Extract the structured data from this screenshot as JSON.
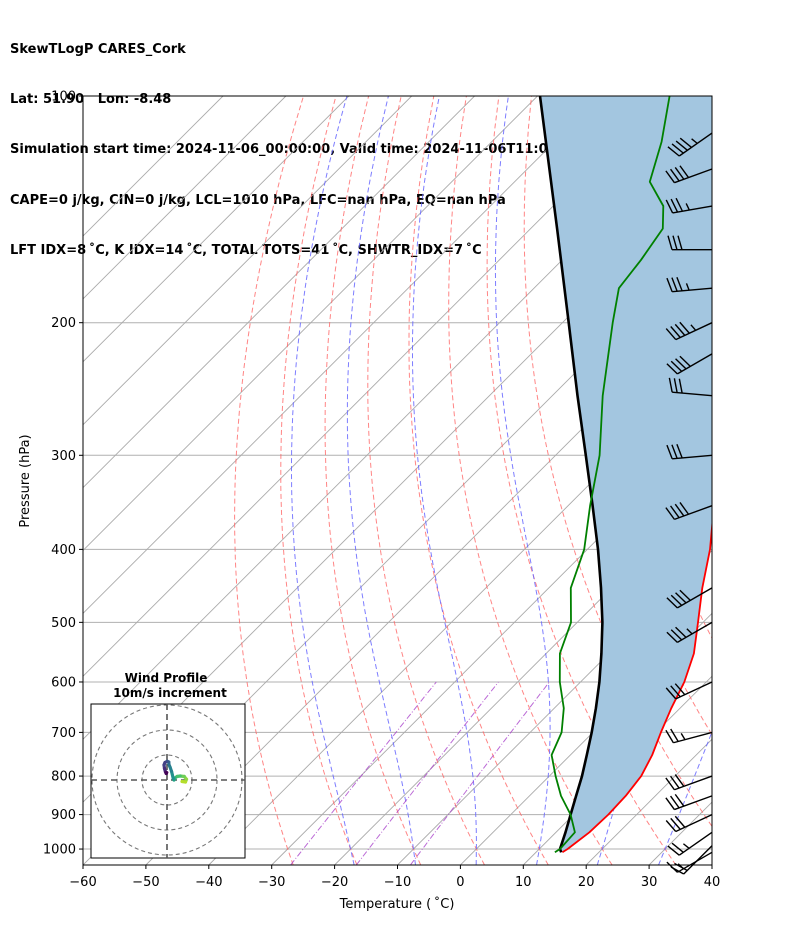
{
  "header": {
    "lines": [
      "SkewTLogP CARES_Cork",
      "Lat: 51.90   Lon: -8.48",
      "Simulation start time: 2024-11-06_00:00:00, Valid time: 2024-11-06T11:00:00.00",
      "CAPE=0 j/kg, CIN=0 j/kg, LCL=1010 hPa, LFC=nan hPa, EQ=nan hPa",
      "LFT IDX=8 ˚C, K IDX=14 ˚C, TOTAL TOTS=41 ˚C, SHWTR_IDX=7 ˚C"
    ]
  },
  "chart_data": {
    "type": "skewt",
    "xlabel": "Temperature ( ˚C)",
    "ylabel": "Pressure (hPa)",
    "xlim": [
      -60,
      40
    ],
    "ylim": [
      1050,
      100
    ],
    "xticks": [
      -60,
      -50,
      -40,
      -30,
      -20,
      -10,
      0,
      10,
      20,
      30,
      40
    ],
    "yticks": [
      100,
      200,
      300,
      400,
      500,
      600,
      700,
      800,
      900,
      1000
    ],
    "colors": {
      "temperature": "#ff0000",
      "dewpoint": "#008000",
      "parcel": "#000000",
      "shade": "#a3c6e0",
      "dry_adiabat": "#ff6666",
      "moist_adiabat": "#6666ff",
      "mixing_ratio": "#aa44cc",
      "isotherm": "#aaaaaa"
    },
    "temperature": [
      {
        "p": 1010,
        "t": 14.2
      },
      {
        "p": 1000,
        "t": 14.5
      },
      {
        "p": 950,
        "t": 15.3
      },
      {
        "p": 900,
        "t": 15.5
      },
      {
        "p": 850,
        "t": 15.3
      },
      {
        "p": 800,
        "t": 14.6
      },
      {
        "p": 750,
        "t": 13.0
      },
      {
        "p": 700,
        "t": 10.8
      },
      {
        "p": 650,
        "t": 8.6
      },
      {
        "p": 600,
        "t": 6.5
      },
      {
        "p": 550,
        "t": 3.5
      },
      {
        "p": 500,
        "t": -0.8
      },
      {
        "p": 450,
        "t": -5.6
      },
      {
        "p": 400,
        "t": -10.5
      },
      {
        "p": 350,
        "t": -16.8
      },
      {
        "p": 300,
        "t": -23.8
      },
      {
        "p": 250,
        "t": -31.8
      },
      {
        "p": 200,
        "t": -41.0
      },
      {
        "p": 175,
        "t": -46.0
      },
      {
        "p": 160,
        "t": -46.0
      },
      {
        "p": 150,
        "t": -44.3
      },
      {
        "p": 130,
        "t": -43.0
      },
      {
        "p": 115,
        "t": -44.8
      },
      {
        "p": 100,
        "t": -47.5
      }
    ],
    "dewpoint": [
      {
        "p": 1010,
        "t": 13.0
      },
      {
        "p": 1000,
        "t": 13.3
      },
      {
        "p": 950,
        "t": 13.0
      },
      {
        "p": 900,
        "t": 9.5
      },
      {
        "p": 850,
        "t": 5.0
      },
      {
        "p": 800,
        "t": 1.0
      },
      {
        "p": 750,
        "t": -3.0
      },
      {
        "p": 700,
        "t": -5.0
      },
      {
        "p": 650,
        "t": -8.5
      },
      {
        "p": 600,
        "t": -13.3
      },
      {
        "p": 550,
        "t": -17.8
      },
      {
        "p": 500,
        "t": -21.0
      },
      {
        "p": 450,
        "t": -26.5
      },
      {
        "p": 400,
        "t": -30.5
      },
      {
        "p": 350,
        "t": -36.5
      },
      {
        "p": 300,
        "t": -43.0
      },
      {
        "p": 250,
        "t": -52.0
      },
      {
        "p": 200,
        "t": -62.0
      },
      {
        "p": 180,
        "t": -66.5
      },
      {
        "p": 165,
        "t": -67.5
      },
      {
        "p": 150,
        "t": -69.0
      },
      {
        "p": 140,
        "t": -72.5
      },
      {
        "p": 130,
        "t": -78.5
      },
      {
        "p": 115,
        "t": -83.0
      },
      {
        "p": 100,
        "t": -89.0
      }
    ],
    "parcel": [
      {
        "p": 1010,
        "t": 14.0
      },
      {
        "p": 1000,
        "t": 13.3
      },
      {
        "p": 950,
        "t": 11.5
      },
      {
        "p": 900,
        "t": 9.5
      },
      {
        "p": 850,
        "t": 7.4
      },
      {
        "p": 800,
        "t": 5.2
      },
      {
        "p": 750,
        "t": 2.6
      },
      {
        "p": 700,
        "t": -0.2
      },
      {
        "p": 650,
        "t": -3.4
      },
      {
        "p": 600,
        "t": -7.0
      },
      {
        "p": 550,
        "t": -11.2
      },
      {
        "p": 500,
        "t": -16.0
      },
      {
        "p": 450,
        "t": -21.7
      },
      {
        "p": 400,
        "t": -28.3
      },
      {
        "p": 350,
        "t": -36.1
      },
      {
        "p": 300,
        "t": -45.2
      },
      {
        "p": 250,
        "t": -56.0
      },
      {
        "p": 200,
        "t": -69.0
      },
      {
        "p": 150,
        "t": -85.8
      },
      {
        "p": 100,
        "t": -109.6
      }
    ],
    "wind_barbs": [
      {
        "p": 1010,
        "dir": 240,
        "speed_kt": 15
      },
      {
        "p": 990,
        "dir": 225,
        "speed_kt": 20
      },
      {
        "p": 950,
        "dir": 235,
        "speed_kt": 25
      },
      {
        "p": 900,
        "dir": 245,
        "speed_kt": 30
      },
      {
        "p": 850,
        "dir": 250,
        "speed_kt": 30
      },
      {
        "p": 800,
        "dir": 250,
        "speed_kt": 30
      },
      {
        "p": 700,
        "dir": 255,
        "speed_kt": 25
      },
      {
        "p": 600,
        "dir": 245,
        "speed_kt": 30
      },
      {
        "p": 500,
        "dir": 240,
        "speed_kt": 35
      },
      {
        "p": 450,
        "dir": 240,
        "speed_kt": 40
      },
      {
        "p": 350,
        "dir": 250,
        "speed_kt": 40
      },
      {
        "p": 300,
        "dir": 265,
        "speed_kt": 30
      },
      {
        "p": 250,
        "dir": 275,
        "speed_kt": 30
      },
      {
        "p": 220,
        "dir": 240,
        "speed_kt": 40
      },
      {
        "p": 200,
        "dir": 245,
        "speed_kt": 45
      },
      {
        "p": 180,
        "dir": 265,
        "speed_kt": 35
      },
      {
        "p": 160,
        "dir": 270,
        "speed_kt": 30
      },
      {
        "p": 140,
        "dir": 260,
        "speed_kt": 35
      },
      {
        "p": 125,
        "dir": 250,
        "speed_kt": 40
      },
      {
        "p": 112,
        "dir": 235,
        "speed_kt": 45
      }
    ],
    "hodograph": {
      "title": "Wind Profile",
      "subtitle": "10m/s increment",
      "rings_ms": [
        10,
        20,
        30
      ],
      "points": [
        {
          "u": 6.0,
          "v": -0.6
        },
        {
          "u": 7.4,
          "v": -0.8
        },
        {
          "u": 7.8,
          "v": 0.3
        },
        {
          "u": 6.9,
          "v": 1.4
        },
        {
          "u": 5.3,
          "v": 1.6
        },
        {
          "u": 4.0,
          "v": 1.4
        },
        {
          "u": 3.2,
          "v": 0.8
        },
        {
          "u": 2.8,
          "v": 0.0
        },
        {
          "u": 2.5,
          "v": 0.6
        },
        {
          "u": 1.8,
          "v": 3.5
        },
        {
          "u": 1.2,
          "v": 5.2
        },
        {
          "u": 0.8,
          "v": 6.1
        },
        {
          "u": 0.7,
          "v": 7.2
        },
        {
          "u": 0.1,
          "v": 7.5
        },
        {
          "u": -0.8,
          "v": 7.0
        },
        {
          "u": -1.2,
          "v": 6.0
        },
        {
          "u": -1.0,
          "v": 4.6
        },
        {
          "u": -0.6,
          "v": 3.2
        },
        {
          "u": -0.3,
          "v": 2.6
        },
        {
          "u": -0.1,
          "v": 3.0
        }
      ]
    }
  }
}
